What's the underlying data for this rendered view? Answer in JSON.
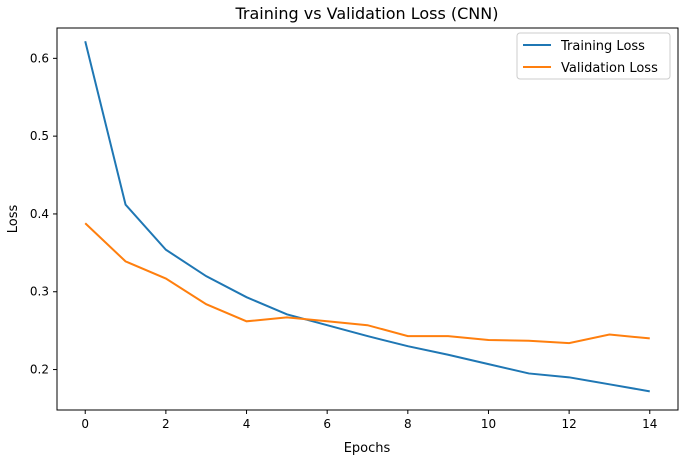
{
  "chart_data": {
    "type": "line",
    "title": "Training vs Validation Loss (CNN)",
    "xlabel": "Epochs",
    "ylabel": "Loss",
    "x": [
      0,
      1,
      2,
      3,
      4,
      5,
      6,
      7,
      8,
      9,
      10,
      11,
      12,
      13,
      14
    ],
    "xlim": [
      -0.7,
      14.7
    ],
    "ylim": [
      0.148,
      0.639
    ],
    "xticks": [
      0,
      2,
      4,
      6,
      8,
      10,
      12,
      14
    ],
    "yticks": [
      0.2,
      0.3,
      0.4,
      0.5,
      0.6
    ],
    "grid": false,
    "legend_position": "top-right",
    "series": [
      {
        "name": "Training Loss",
        "color": "#1f77b4",
        "values": [
          0.622,
          0.412,
          0.354,
          0.32,
          0.293,
          0.271,
          0.257,
          0.243,
          0.23,
          0.219,
          0.207,
          0.195,
          0.19,
          0.181,
          0.172
        ]
      },
      {
        "name": "Validation Loss",
        "color": "#ff7f0e",
        "values": [
          0.388,
          0.339,
          0.317,
          0.284,
          0.262,
          0.267,
          0.262,
          0.257,
          0.243,
          0.243,
          0.238,
          0.237,
          0.234,
          0.245,
          0.24
        ]
      }
    ]
  }
}
